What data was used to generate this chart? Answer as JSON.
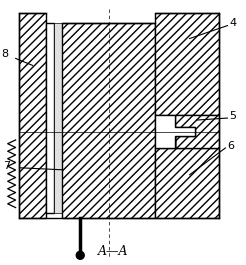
{
  "fig_width": 2.46,
  "fig_height": 2.65,
  "dpi": 100,
  "bg_color": "#ffffff",
  "line_color": "#000000",
  "title_text": "A—A",
  "lw_main": 1.0,
  "lw_thin": 0.6,
  "label_fs": 8
}
